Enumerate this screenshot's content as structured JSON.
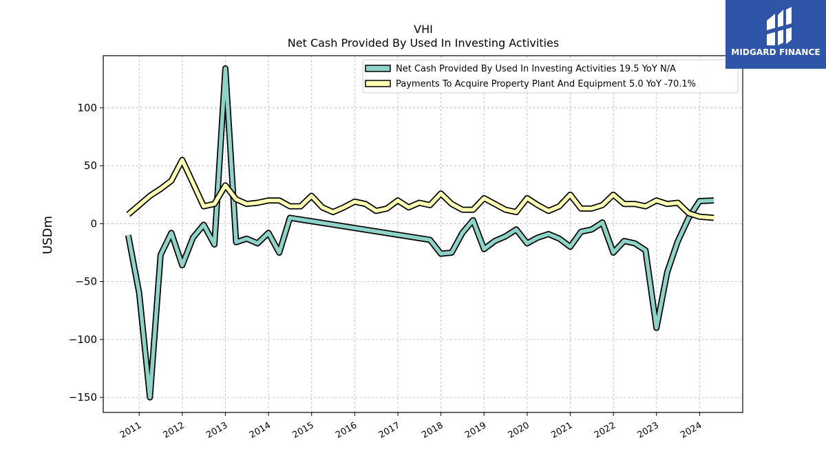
{
  "chart_data": {
    "type": "line",
    "title": "VHI",
    "subtitle": "Net Cash Provided By Used In Investing Activities",
    "xlabel": "",
    "ylabel": "USDm",
    "xlim": [
      "2010-03-01",
      "2025-01-01"
    ],
    "ylim": [
      -163,
      145
    ],
    "yticks": [
      -150,
      -100,
      -50,
      0,
      50,
      100
    ],
    "xticks": [
      "2011",
      "2012",
      "2013",
      "2014",
      "2015",
      "2016",
      "2017",
      "2018",
      "2019",
      "2020",
      "2021",
      "2022",
      "2023",
      "2024"
    ],
    "grid": true,
    "legend_position": "top-right",
    "series": [
      {
        "name": "Net Cash Provided By Used In Investing Activities",
        "legend_label": "Net Cash Provided By Used In Investing Activities  19.5 YoY N/A",
        "color": "#8dd3c7",
        "points": [
          [
            "2010-09-30",
            -10
          ],
          [
            "2011-01-01",
            -60
          ],
          [
            "2011-04-01",
            -150
          ],
          [
            "2011-06-30",
            -27
          ],
          [
            "2011-09-30",
            -8
          ],
          [
            "2011-12-31",
            -36
          ],
          [
            "2012-03-31",
            -12
          ],
          [
            "2012-06-30",
            -1
          ],
          [
            "2012-09-30",
            -18
          ],
          [
            "2012-12-31",
            134
          ],
          [
            "2013-03-31",
            -16
          ],
          [
            "2013-06-30",
            -13
          ],
          [
            "2013-09-30",
            -17
          ],
          [
            "2013-12-31",
            -8
          ],
          [
            "2014-03-31",
            -25
          ],
          [
            "2014-06-30",
            5
          ],
          [
            "2017-09-30",
            -14
          ],
          [
            "2017-12-31",
            -26
          ],
          [
            "2018-03-31",
            -25
          ],
          [
            "2018-06-30",
            -8
          ],
          [
            "2018-09-30",
            3
          ],
          [
            "2018-12-31",
            -22
          ],
          [
            "2019-03-31",
            -15
          ],
          [
            "2019-06-30",
            -11
          ],
          [
            "2019-09-30",
            -5
          ],
          [
            "2019-12-31",
            -17
          ],
          [
            "2020-03-31",
            -12
          ],
          [
            "2020-06-30",
            -9
          ],
          [
            "2020-09-30",
            -13
          ],
          [
            "2020-12-31",
            -20
          ],
          [
            "2021-03-31",
            -7
          ],
          [
            "2021-06-30",
            -5
          ],
          [
            "2021-09-30",
            1
          ],
          [
            "2021-12-31",
            -25
          ],
          [
            "2022-03-31",
            -15
          ],
          [
            "2022-06-30",
            -17
          ],
          [
            "2022-09-30",
            -23
          ],
          [
            "2022-12-31",
            -90
          ],
          [
            "2023-03-31",
            -42
          ],
          [
            "2023-06-30",
            -15
          ],
          [
            "2023-09-30",
            5
          ],
          [
            "2023-12-31",
            19.5
          ],
          [
            "2024-04-30",
            20
          ]
        ]
      },
      {
        "name": "Payments To Acquire Property Plant And Equipment",
        "legend_label": "Payments To Acquire Property Plant And Equipment  5.0 YoY -70.1%",
        "color": "#ffffb3",
        "points": [
          [
            "2010-09-30",
            8
          ],
          [
            "2011-01-01",
            16
          ],
          [
            "2011-04-01",
            24
          ],
          [
            "2011-06-30",
            30
          ],
          [
            "2011-09-30",
            37
          ],
          [
            "2011-12-31",
            55
          ],
          [
            "2012-03-31",
            35
          ],
          [
            "2012-06-30",
            15
          ],
          [
            "2012-09-30",
            17
          ],
          [
            "2012-12-31",
            33
          ],
          [
            "2013-03-31",
            21
          ],
          [
            "2013-06-30",
            17
          ],
          [
            "2013-09-30",
            18
          ],
          [
            "2013-12-31",
            20
          ],
          [
            "2014-03-31",
            20
          ],
          [
            "2014-06-30",
            15
          ],
          [
            "2014-09-30",
            15
          ],
          [
            "2014-12-31",
            24
          ],
          [
            "2015-03-31",
            14
          ],
          [
            "2015-06-30",
            10
          ],
          [
            "2015-09-30",
            14
          ],
          [
            "2015-12-31",
            19
          ],
          [
            "2016-03-31",
            17
          ],
          [
            "2016-06-30",
            11
          ],
          [
            "2016-09-30",
            13
          ],
          [
            "2016-12-31",
            20
          ],
          [
            "2017-03-31",
            14
          ],
          [
            "2017-06-30",
            18
          ],
          [
            "2017-09-30",
            16
          ],
          [
            "2017-12-31",
            26
          ],
          [
            "2018-03-31",
            17
          ],
          [
            "2018-06-30",
            12
          ],
          [
            "2018-09-30",
            12
          ],
          [
            "2018-12-31",
            22
          ],
          [
            "2019-03-31",
            17
          ],
          [
            "2019-06-30",
            12
          ],
          [
            "2019-09-30",
            10
          ],
          [
            "2019-12-31",
            22
          ],
          [
            "2020-03-31",
            16
          ],
          [
            "2020-06-30",
            11
          ],
          [
            "2020-09-30",
            15
          ],
          [
            "2020-12-31",
            25
          ],
          [
            "2021-03-31",
            13
          ],
          [
            "2021-06-30",
            13
          ],
          [
            "2021-09-30",
            16
          ],
          [
            "2021-12-31",
            25
          ],
          [
            "2022-03-31",
            17
          ],
          [
            "2022-06-30",
            17
          ],
          [
            "2022-09-30",
            15
          ],
          [
            "2022-12-31",
            20
          ],
          [
            "2023-03-31",
            17
          ],
          [
            "2023-06-30",
            18
          ],
          [
            "2023-09-30",
            9
          ],
          [
            "2023-12-31",
            6
          ],
          [
            "2024-04-30",
            5
          ]
        ]
      }
    ]
  },
  "brand": {
    "name": "MIDGARD FINANCE",
    "color": "#2f55a8",
    "icon": "midgard-logo-icon"
  }
}
